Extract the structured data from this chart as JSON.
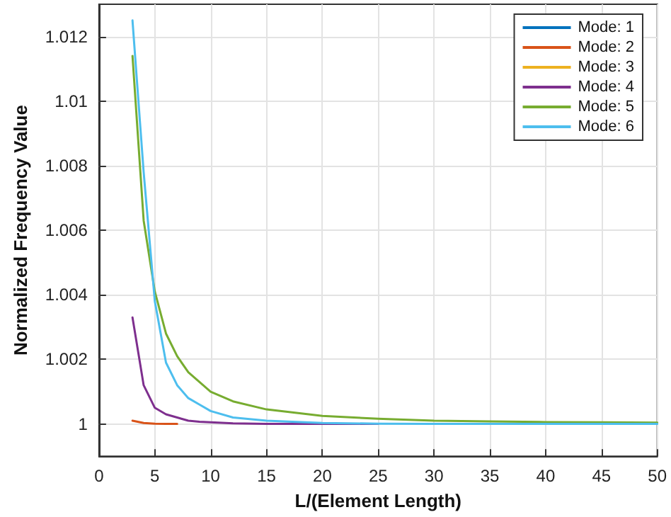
{
  "chart_data": {
    "type": "line",
    "xlabel": "L/(Element Length)",
    "ylabel": "Normalized Frequency Value",
    "x": [
      3,
      4,
      5,
      6,
      7,
      8,
      9,
      10,
      12,
      15,
      20,
      25,
      30,
      35,
      40,
      45,
      50
    ],
    "series": [
      {
        "name": "Mode: 1",
        "color": "#0072bd",
        "values": [
          null,
          null,
          null,
          null,
          null,
          null,
          null,
          null,
          null,
          null,
          null,
          null,
          null,
          null,
          null,
          null,
          null
        ]
      },
      {
        "name": "Mode: 2",
        "color": "#d95319",
        "values": [
          1.0001,
          1.00003,
          1.00001,
          1,
          1,
          null,
          null,
          null,
          null,
          null,
          null,
          null,
          null,
          null,
          null,
          null,
          null
        ]
      },
      {
        "name": "Mode: 3",
        "color": "#edb120",
        "values": [
          null,
          null,
          null,
          null,
          null,
          null,
          null,
          null,
          null,
          null,
          null,
          null,
          null,
          null,
          null,
          null,
          null
        ]
      },
      {
        "name": "Mode: 4",
        "color": "#7e2f8e",
        "values": [
          1.0033,
          1.0012,
          1.0005,
          1.0003,
          1.0002,
          1.0001,
          1.00007,
          1.00005,
          1.00002,
          1,
          1,
          1,
          null,
          null,
          null,
          null,
          null
        ]
      },
      {
        "name": "Mode: 5",
        "color": "#77ac30",
        "values": [
          1.0114,
          1.0063,
          1.0041,
          1.0028,
          1.0021,
          1.0016,
          1.0013,
          1.001,
          1.0007,
          1.00045,
          1.00025,
          1.00016,
          1.0001,
          1.00008,
          1.00006,
          1.00005,
          1.00004
        ]
      },
      {
        "name": "Mode: 6",
        "color": "#4dbeee",
        "values": [
          1.0125,
          1.0078,
          1.0038,
          1.0019,
          1.0012,
          1.0008,
          1.0006,
          1.0004,
          1.0002,
          1.0001,
          1.00003,
          1.00001,
          1,
          1,
          1,
          1,
          1
        ]
      }
    ],
    "xlim": [
      0,
      50
    ],
    "xticks": [
      0,
      5,
      10,
      15,
      20,
      25,
      30,
      35,
      40,
      45,
      50
    ],
    "ylim": [
      0.999,
      1.013
    ],
    "yticks": [
      1,
      1.002,
      1.004,
      1.006,
      1.008,
      1.01,
      1.012
    ],
    "grid": true,
    "legend": "top right",
    "marker": "none",
    "line_style": "solid"
  }
}
